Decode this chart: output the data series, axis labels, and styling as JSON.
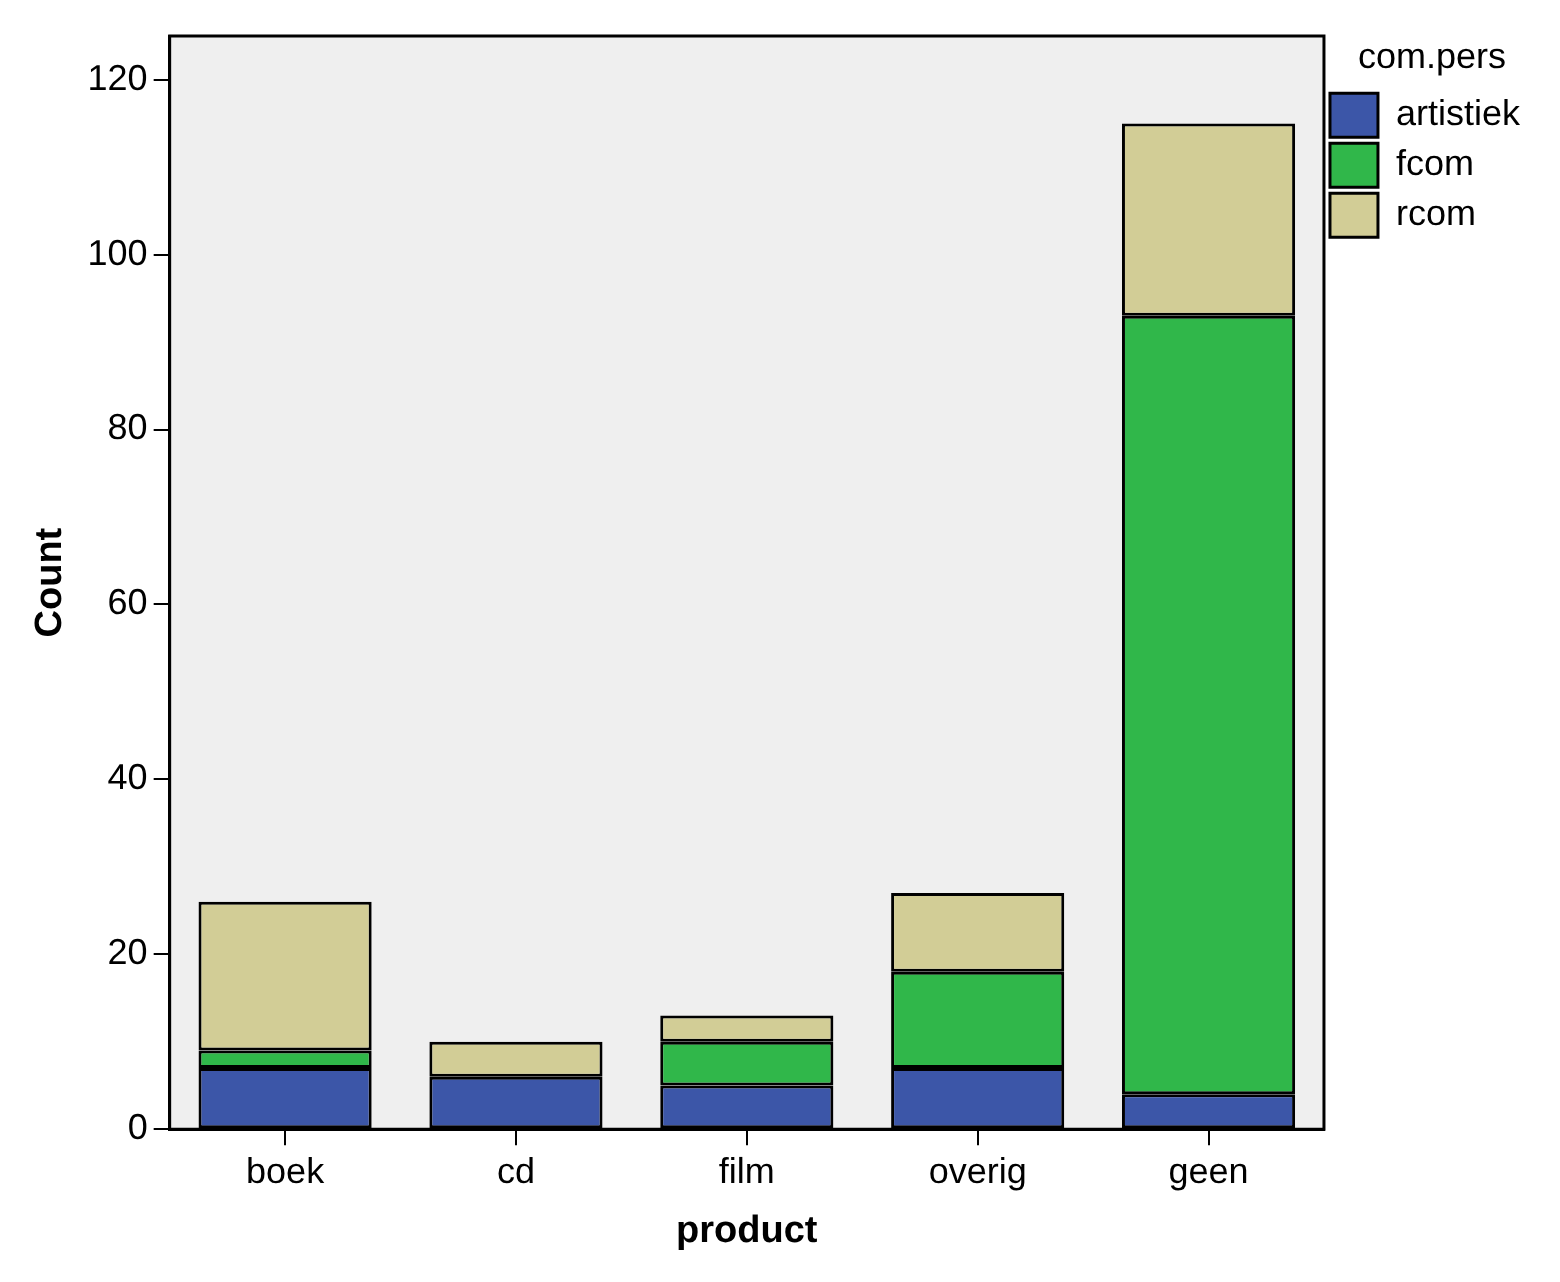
{
  "chart_data": {
    "type": "bar",
    "stacked": true,
    "xlabel": "product",
    "ylabel": "Count",
    "legend_title": "com.pers",
    "legend": "top right",
    "categories": [
      "boek",
      "cd",
      "film",
      "overig",
      "geen"
    ],
    "series": [
      {
        "name": "artistiek",
        "color": "#3c56a8",
        "values": [
          7,
          6,
          5,
          7,
          4
        ]
      },
      {
        "name": "fcom",
        "color": "#30b74a",
        "values": [
          2,
          0,
          5,
          11,
          89
        ]
      },
      {
        "name": "rcom",
        "color": "#d2cd96",
        "values": [
          17,
          4,
          3,
          9,
          22
        ]
      }
    ],
    "ylim": [
      0,
      125
    ],
    "yticks": [
      0,
      20,
      40,
      60,
      80,
      100,
      120
    ],
    "grid": false
  }
}
